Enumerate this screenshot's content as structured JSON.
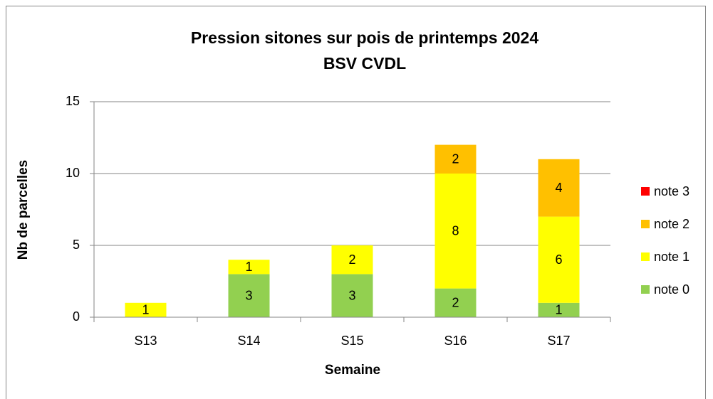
{
  "chart_data": {
    "type": "bar",
    "stacked": true,
    "title": [
      "Pression sitones sur pois de printemps 2024",
      "BSV CVDL"
    ],
    "x_label": "Semaine",
    "y_label": "Nb de parcelles",
    "categories": [
      "S13",
      "S14",
      "S15",
      "S16",
      "S17"
    ],
    "series": [
      {
        "name": "note 0",
        "color": "#92d050",
        "values": [
          null,
          3,
          3,
          2,
          1
        ]
      },
      {
        "name": "note 1",
        "color": "#ffff00",
        "values": [
          1,
          1,
          2,
          8,
          6
        ]
      },
      {
        "name": "note 2",
        "color": "#ffc000",
        "values": [
          null,
          null,
          null,
          2,
          4
        ]
      },
      {
        "name": "note 3",
        "color": "#ff0000",
        "values": [
          null,
          null,
          null,
          null,
          null
        ]
      }
    ],
    "ylim": [
      0,
      15
    ],
    "yticks": [
      0,
      5,
      10,
      15
    ],
    "grid": true,
    "legend": "right"
  }
}
